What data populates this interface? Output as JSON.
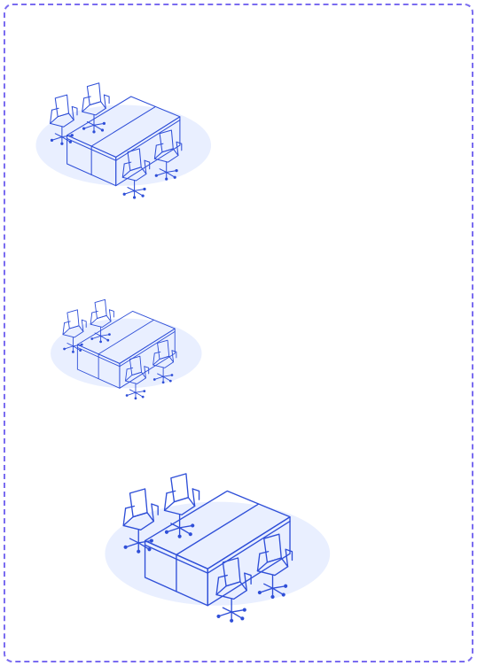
{
  "colors": {
    "frame_border": "#7a6cf0",
    "line": "#2f4fd8",
    "floor_shadow": "#e9efff",
    "table_top": "#ffffff",
    "table_side": "#ffffff"
  },
  "illustrations": [
    {
      "name": "conference-table-scene-1",
      "icon": "conference-table-with-chairs"
    },
    {
      "name": "conference-table-scene-2",
      "icon": "conference-table-with-chairs"
    },
    {
      "name": "conference-table-scene-3",
      "icon": "conference-table-with-chairs"
    }
  ]
}
